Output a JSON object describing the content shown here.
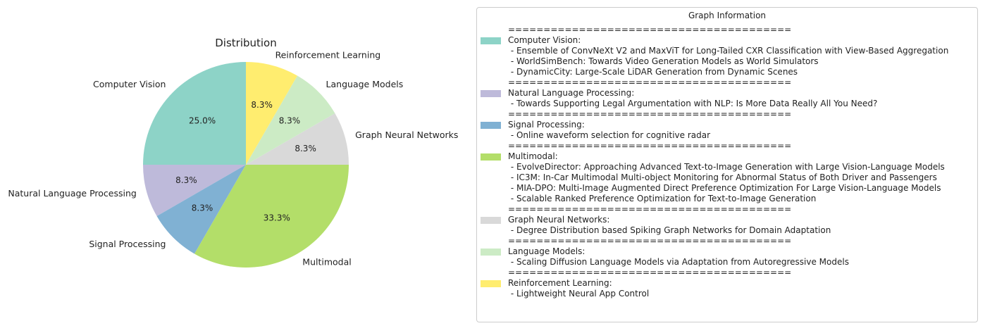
{
  "chart_data": {
    "type": "pie",
    "title": "Distribution",
    "slices": [
      {
        "label": "Computer Vision",
        "value": 3,
        "pct": "25.0%",
        "color": "#8dd3c7"
      },
      {
        "label": "Natural Language Processing",
        "value": 1,
        "pct": "8.3%",
        "color": "#bebada"
      },
      {
        "label": "Signal Processing",
        "value": 1,
        "pct": "8.3%",
        "color": "#80b1d3"
      },
      {
        "label": "Multimodal",
        "value": 4,
        "pct": "33.3%",
        "color": "#b3de69"
      },
      {
        "label": "Graph Neural Networks",
        "value": 1,
        "pct": "8.3%",
        "color": "#d9d9d9"
      },
      {
        "label": "Language Models",
        "value": 1,
        "pct": "8.3%",
        "color": "#ccebc5"
      },
      {
        "label": "Reinforcement Learning",
        "value": 1,
        "pct": "8.3%",
        "color": "#ffed6f"
      }
    ],
    "start_angle_deg": 90,
    "direction": "counterclockwise"
  },
  "legend": {
    "title": "Graph Information",
    "separator": "========================================",
    "entries": [
      {
        "category": "Computer Vision:",
        "color": "#8dd3c7",
        "items": [
          " - Ensemble of ConvNeXt V2 and MaxViT for Long-Tailed CXR Classification with View-Based Aggregation",
          " - WorldSimBench: Towards Video Generation Models as World Simulators",
          " - DynamicCity: Large-Scale LiDAR Generation from Dynamic Scenes"
        ]
      },
      {
        "category": "Natural Language Processing:",
        "color": "#bebada",
        "items": [
          " - Towards Supporting Legal Argumentation with NLP: Is More Data Really All You Need?"
        ]
      },
      {
        "category": "Signal Processing:",
        "color": "#80b1d3",
        "items": [
          " - Online waveform selection for cognitive radar"
        ]
      },
      {
        "category": "Multimodal:",
        "color": "#b3de69",
        "items": [
          " - EvolveDirector: Approaching Advanced Text-to-Image Generation with Large Vision-Language Models",
          " - IC3M: In-Car Multimodal Multi-object Monitoring for Abnormal Status of Both Driver and Passengers",
          " - MIA-DPO: Multi-Image Augmented Direct Preference Optimization For Large Vision-Language Models",
          " - Scalable Ranked Preference Optimization for Text-to-Image Generation"
        ]
      },
      {
        "category": "Graph Neural Networks:",
        "color": "#d9d9d9",
        "items": [
          " - Degree Distribution based Spiking Graph Networks for Domain Adaptation"
        ]
      },
      {
        "category": "Language Models:",
        "color": "#ccebc5",
        "items": [
          " - Scaling Diffusion Language Models via Adaptation from Autoregressive Models"
        ]
      },
      {
        "category": "Reinforcement Learning:",
        "color": "#ffed6f",
        "items": [
          " - Lightweight Neural App Control"
        ]
      }
    ]
  }
}
